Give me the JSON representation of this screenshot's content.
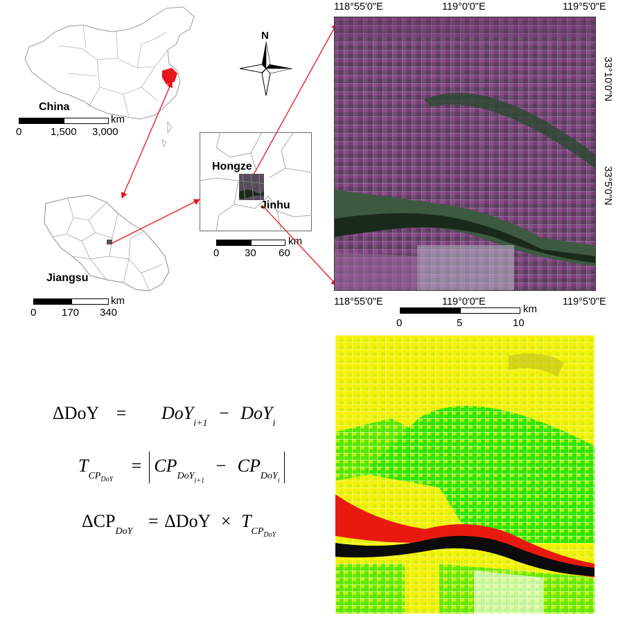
{
  "china": {
    "label": "China",
    "unit": "km",
    "ticks": [
      "0",
      "1,500",
      "3,000"
    ]
  },
  "jiangsu": {
    "label": "Jiangsu",
    "unit": "km",
    "ticks": [
      "0",
      "170",
      "340"
    ]
  },
  "inset": {
    "label_hongze": "Hongze",
    "label_jinhu": "Jinhu",
    "unit": "km",
    "ticks": [
      "0",
      "30",
      "60"
    ]
  },
  "north_arrow": {
    "label": "N"
  },
  "satellite": {
    "top_coords": [
      "118°55'0\"E",
      "119°0'0\"E",
      "119°5'0\"E"
    ],
    "bottom_coords": [
      "118°55'0\"E",
      "119°0'0\"E",
      "119°5'0\"E"
    ],
    "right_coords": [
      "33°10'0\"N",
      "33°5'0\"N"
    ],
    "unit": "km",
    "ticks": [
      "0",
      "5",
      "10"
    ]
  },
  "equations": {
    "eq1_lhs": "ΔDoY",
    "eq1_eq": "=",
    "eq1_a": "DoY",
    "eq1_a_sub": "i+1",
    "eq1_minus": "−",
    "eq1_b": "DoY",
    "eq1_b_sub": "i",
    "eq2_lhs": "T",
    "eq2_lhs_sub": "CP",
    "eq2_lhs_subsub": "DoY",
    "eq2_eq": "=",
    "eq2_a": "CP",
    "eq2_a_sub": "DoY",
    "eq2_a_subsub": "i+1",
    "eq2_minus": "−",
    "eq2_b": "CP",
    "eq2_b_sub": "DoY",
    "eq2_b_subsub": "i",
    "eq3_lhs": "ΔCP",
    "eq3_lhs_sub": "DoY",
    "eq3_eq": "=",
    "eq3_a": "ΔDoY",
    "eq3_times": "×",
    "eq3_b": "T",
    "eq3_b_sub": "CP",
    "eq3_b_subsub": "DoY"
  },
  "colors": {
    "highlight": "#e8141b",
    "arrow": "#e8141b",
    "map_border": "#9a9a9a",
    "yellow_class": "#f5f200",
    "green_class": "#2ee600",
    "red_class": "#e81a10",
    "water": "#0b0b0b",
    "crop_purple": "#7a3f78",
    "crop_green": "#3d6b45"
  }
}
